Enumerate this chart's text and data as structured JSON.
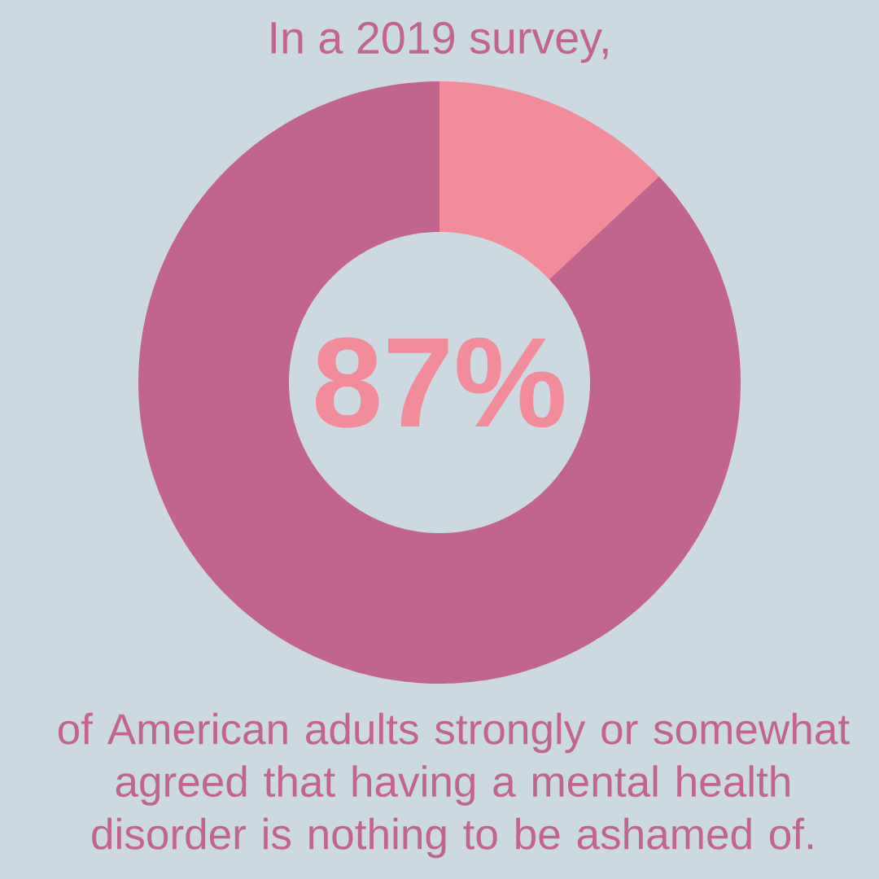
{
  "chart_data": {
    "type": "donut",
    "title": "In a 2019 survey,",
    "categories": [
      null,
      null
    ],
    "values": [
      13,
      87
    ],
    "colors": [
      "#f28b9a",
      "#c2658c"
    ],
    "value_labels": [
      null,
      "87%"
    ],
    "annotations": [
      "of American adults strongly or somewhat agreed that having a mental health disorder is nothing to be ashamed of."
    ]
  }
}
